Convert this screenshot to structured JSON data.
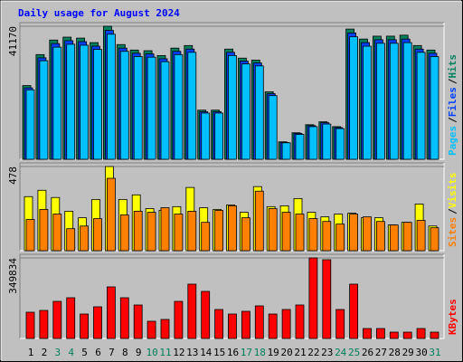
{
  "chart_data": [
    {
      "type": "bar",
      "title": "Daily usage for August 2024",
      "title_color": "#0000ff",
      "legend_separator": "/",
      "series": [
        {
          "name": "Hits",
          "color": "#00805c",
          "values": [
            22800,
            32400,
            36900,
            37800,
            37500,
            36100,
            41170,
            35500,
            33800,
            33600,
            32100,
            34400,
            35200,
            15200,
            15200,
            34100,
            31300,
            30700,
            20900,
            5400,
            8200,
            10700,
            11600,
            10100,
            40300,
            37200,
            38100,
            38100,
            38400,
            35200,
            33800
          ]
        },
        {
          "name": "Files",
          "color": "#0040ff",
          "values": [
            22100,
            31400,
            35800,
            36700,
            36400,
            35000,
            39900,
            34400,
            32800,
            32600,
            31100,
            33400,
            34100,
            14700,
            14700,
            33100,
            30400,
            29800,
            20300,
            5200,
            8000,
            10400,
            11300,
            9800,
            39100,
            36100,
            37000,
            37000,
            37200,
            34100,
            32800
          ]
        },
        {
          "name": "Pages",
          "color": "#00c0ff",
          "values": [
            21500,
            30500,
            34700,
            35600,
            35300,
            34000,
            38700,
            33400,
            31800,
            31600,
            30200,
            32400,
            33100,
            14300,
            14300,
            32100,
            29500,
            28900,
            19700,
            5100,
            7700,
            10100,
            10900,
            9500,
            37900,
            35000,
            35900,
            35900,
            36100,
            33100,
            31800
          ]
        }
      ],
      "ylim": [
        0,
        41170
      ],
      "yticks": [
        41170
      ]
    },
    {
      "type": "bar",
      "legend_separator": "/",
      "series": [
        {
          "name": "Visits",
          "color": "#ffff00",
          "values": [
            307,
            343,
            302,
            224,
            187,
            291,
            478,
            291,
            317,
            239,
            229,
            250,
            359,
            244,
            234,
            260,
            218,
            364,
            250,
            255,
            296,
            218,
            192,
            208,
            213,
            187,
            187,
            146,
            161,
            265,
            140
          ]
        },
        {
          "name": "Sites",
          "color": "#ff8000",
          "values": [
            177,
            234,
            208,
            125,
            140,
            182,
            411,
            203,
            224,
            218,
            244,
            208,
            224,
            161,
            229,
            255,
            187,
            338,
            239,
            218,
            208,
            182,
            166,
            151,
            208,
            192,
            166,
            146,
            161,
            172,
            130
          ]
        }
      ],
      "ylim": [
        0,
        478
      ],
      "yticks": [
        478
      ]
    },
    {
      "type": "bar",
      "series": [
        {
          "name": "KBytes",
          "color": "#ff0000",
          "values": [
            113990,
            121800,
            161100,
            176900,
            106100,
            137600,
            224100,
            176900,
            145400,
            74700,
            82600,
            161100,
            235900,
            204400,
            125800,
            106100,
            117900,
            141500,
            106100,
            125800,
            145400,
            349834,
            342000,
            125800,
            235900,
            43200,
            43200,
            27500,
            27500,
            43200,
            27500
          ]
        }
      ],
      "ylim": [
        0,
        349834
      ],
      "yticks": [
        349834
      ],
      "categories": [
        "1",
        "2",
        "3",
        "4",
        "5",
        "6",
        "7",
        "8",
        "9",
        "10",
        "11",
        "12",
        "13",
        "14",
        "15",
        "16",
        "17",
        "18",
        "19",
        "20",
        "21",
        "22",
        "23",
        "24",
        "25",
        "26",
        "27",
        "28",
        "29",
        "30",
        "31"
      ],
      "category_colors": [
        "#000000",
        "#000000",
        "#00805c",
        "#00805c",
        "#000000",
        "#000000",
        "#000000",
        "#000000",
        "#000000",
        "#00805c",
        "#00805c",
        "#000000",
        "#000000",
        "#000000",
        "#000000",
        "#000000",
        "#00805c",
        "#00805c",
        "#000000",
        "#000000",
        "#000000",
        "#000000",
        "#000000",
        "#00805c",
        "#00805c",
        "#000000",
        "#000000",
        "#000000",
        "#000000",
        "#000000",
        "#00805c"
      ]
    }
  ]
}
